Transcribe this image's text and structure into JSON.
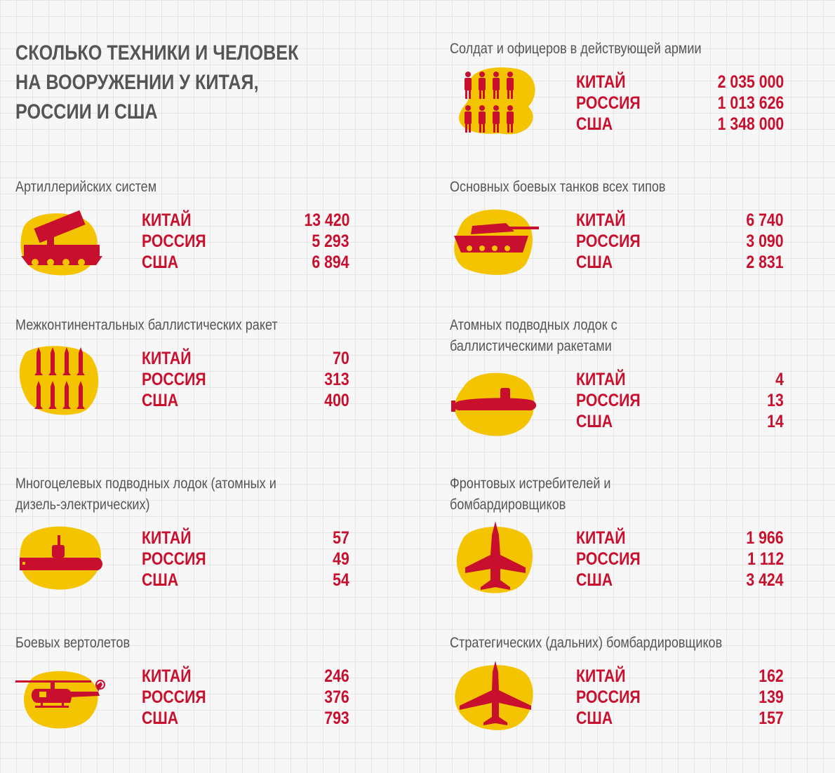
{
  "title": "СКОЛЬКО ТЕХНИКИ И ЧЕЛОВЕК\nНА ВООРУЖЕНИИ У КИТАЯ,\nРОССИИ И США",
  "colors": {
    "accent": "#c8102e",
    "blob": "#f5c400",
    "text": "#555555"
  },
  "sections": {
    "soldiers": {
      "title": "Солдат и офицеров в действующей армии",
      "icon": "soldiers-icon",
      "rows": [
        {
          "country": "КИТАЙ",
          "value": "2 035 000"
        },
        {
          "country": "РОССИЯ",
          "value": "1 013 626"
        },
        {
          "country": "США",
          "value": "1 348 000"
        }
      ]
    },
    "artillery": {
      "title": "Артиллерийских систем",
      "icon": "artillery-icon",
      "rows": [
        {
          "country": "КИТАЙ",
          "value": "13 420"
        },
        {
          "country": "РОССИЯ",
          "value": "5 293"
        },
        {
          "country": "США",
          "value": "6 894"
        }
      ]
    },
    "tanks": {
      "title": "Основных боевых танков всех типов",
      "icon": "tank-icon",
      "rows": [
        {
          "country": "КИТАЙ",
          "value": "6 740"
        },
        {
          "country": "РОССИЯ",
          "value": "3 090"
        },
        {
          "country": "США",
          "value": "2 831"
        }
      ]
    },
    "icbm": {
      "title": "Межконтинентальных баллистических ракет",
      "icon": "missiles-icon",
      "rows": [
        {
          "country": "КИТАЙ",
          "value": "70"
        },
        {
          "country": "РОССИЯ",
          "value": "313"
        },
        {
          "country": "США",
          "value": "400"
        }
      ]
    },
    "ssbn": {
      "title": "Атомных подводных лодок с\nбаллистическими ракетами",
      "icon": "submarine-icon",
      "rows": [
        {
          "country": "КИТАЙ",
          "value": "4"
        },
        {
          "country": "РОССИЯ",
          "value": "13"
        },
        {
          "country": "США",
          "value": "14"
        }
      ]
    },
    "multi_sub": {
      "title": "Многоцелевых подводных лодок (атомных и\nдизель-электрических)",
      "icon": "submarine-side-icon",
      "rows": [
        {
          "country": "КИТАЙ",
          "value": "57"
        },
        {
          "country": "РОССИЯ",
          "value": "49"
        },
        {
          "country": "США",
          "value": "54"
        }
      ]
    },
    "fighters": {
      "title": "Фронтовых истребителей и\nбомбардировщиков",
      "icon": "fighter-jet-icon",
      "rows": [
        {
          "country": "КИТАЙ",
          "value": "1 966"
        },
        {
          "country": "РОССИЯ",
          "value": "1 112"
        },
        {
          "country": "США",
          "value": "3 424"
        }
      ]
    },
    "helicopters": {
      "title": "Боевых вертолетов",
      "icon": "helicopter-icon",
      "rows": [
        {
          "country": "КИТАЙ",
          "value": "246"
        },
        {
          "country": "РОССИЯ",
          "value": "376"
        },
        {
          "country": "США",
          "value": "793"
        }
      ]
    },
    "bombers": {
      "title": "Стратегических (дальних) бомбардировщиков",
      "icon": "bomber-icon",
      "rows": [
        {
          "country": "КИТАЙ",
          "value": "162"
        },
        {
          "country": "РОССИЯ",
          "value": "139"
        },
        {
          "country": "США",
          "value": "157"
        }
      ]
    }
  }
}
